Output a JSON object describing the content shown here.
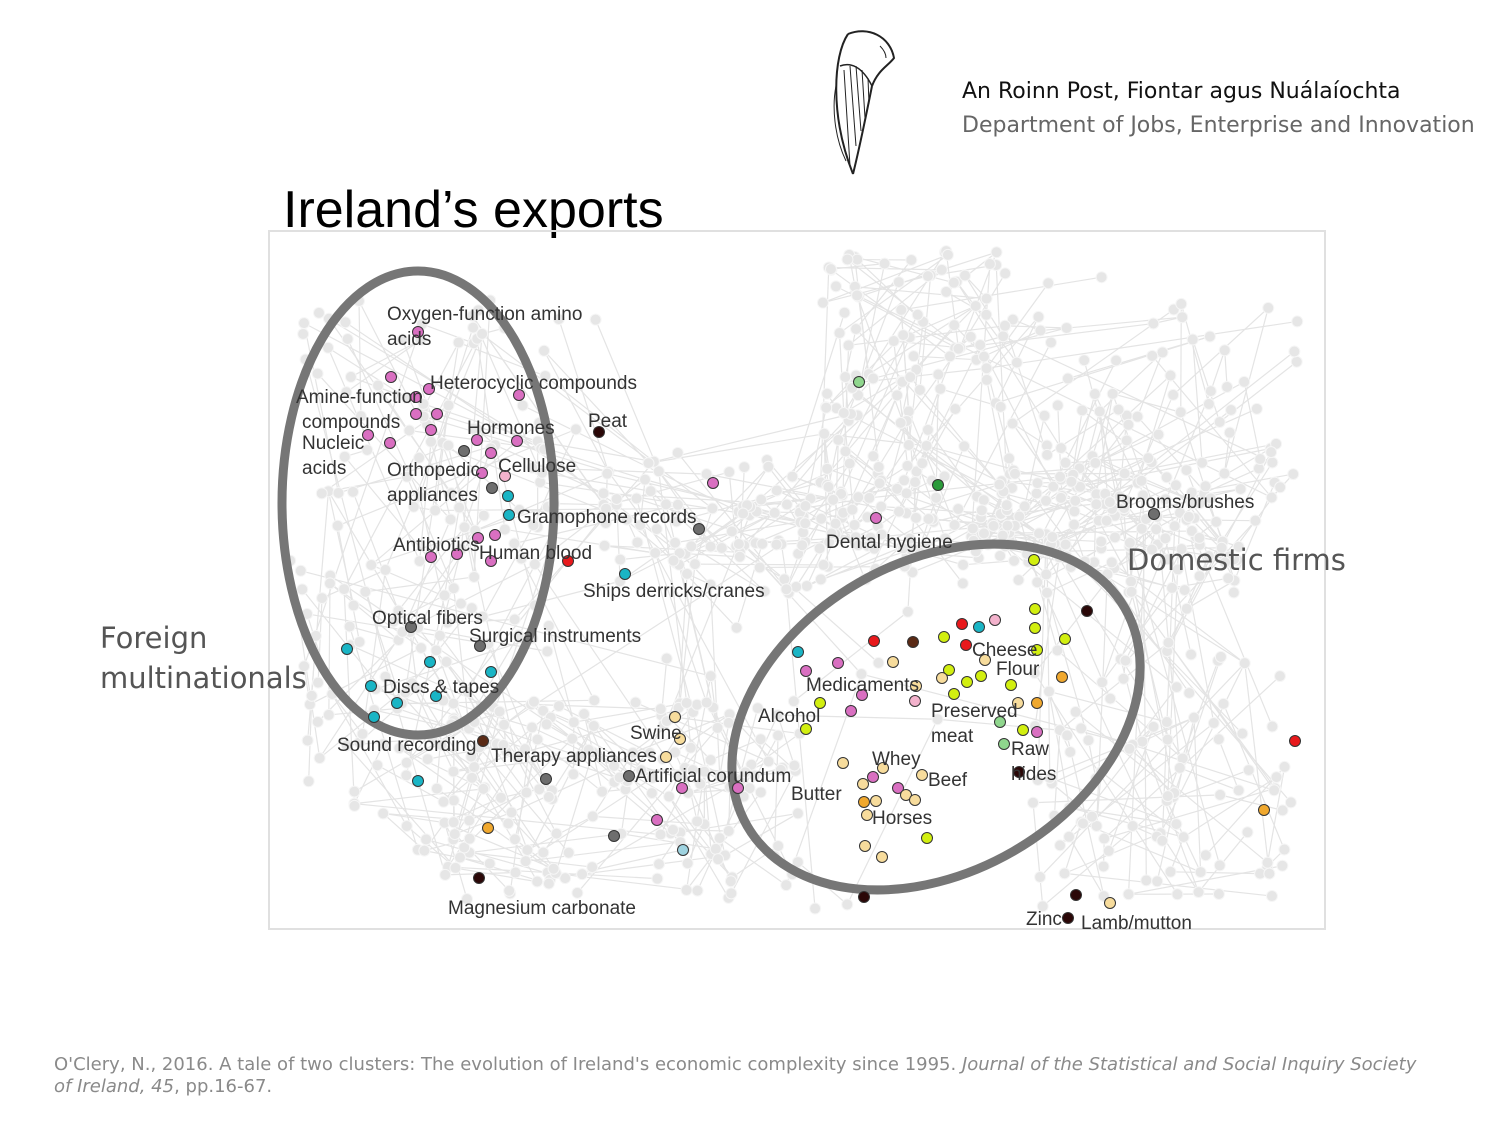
{
  "header": {
    "dept_name_irish": "An Roinn Post, Fiontar agus Nuálaíochta",
    "dept_name_english": "Department of Jobs, Enterprise and Innovation",
    "logo_icon": "harp-crest-icon"
  },
  "title": "Ireland’s exports",
  "cluster_labels": {
    "foreign": [
      "Foreign",
      "multinationals"
    ],
    "domestic": "Domestic firms"
  },
  "node_labels": [
    "Oxygen-function amino",
    "acids",
    "Heterocyclic compounds",
    "Amine-function",
    "compounds",
    "Nucleic",
    "acids",
    "Hormones",
    "Peat",
    "Orthopedic",
    "appliances",
    "Cellulose",
    "Gramophone records",
    "Antibiotics",
    "Human blood",
    "Ships derricks/cranes",
    "Optical fibers",
    "Surgical instruments",
    "Discs & tapes",
    "Sound recording",
    "Therapy appliances",
    "Swine",
    "Artificial corundum",
    "Magnesium carbonate",
    "Dental hygiene",
    "Brooms/brushes",
    "Cheese",
    "Flour",
    "Medicaments",
    "Alcohol",
    "Preserved",
    "meat",
    "Raw",
    "hides",
    "Whey",
    "Beef",
    "Butter",
    "Horses",
    "Zinc",
    "Lamb/mutton"
  ],
  "citation": {
    "text": "O'Clery, N., 2016. A tale of two clusters: The evolution of Ireland's economic complexity since 1995. ",
    "journal": "Journal of the Statistical and Social Inquiry Society of Ireland, 45",
    "pages": ", pp.16-67."
  },
  "colors": {
    "pink": "#d96fc1",
    "cyan": "#1ab5c5",
    "gray": "#6e6e6e",
    "red": "#e8191c",
    "darkbrown": "#2a0707",
    "brown": "#5a2a15",
    "lightpink": "#f3b2cc",
    "lime": "#d2ef10",
    "cream": "#f7dc9c",
    "orange": "#f0a82e",
    "lightgreen": "#8fd68d",
    "green": "#2a9b3a",
    "lightblue": "#9fd3e0",
    "background_node": "#e6e6e6",
    "ellipse": "#767676"
  }
}
